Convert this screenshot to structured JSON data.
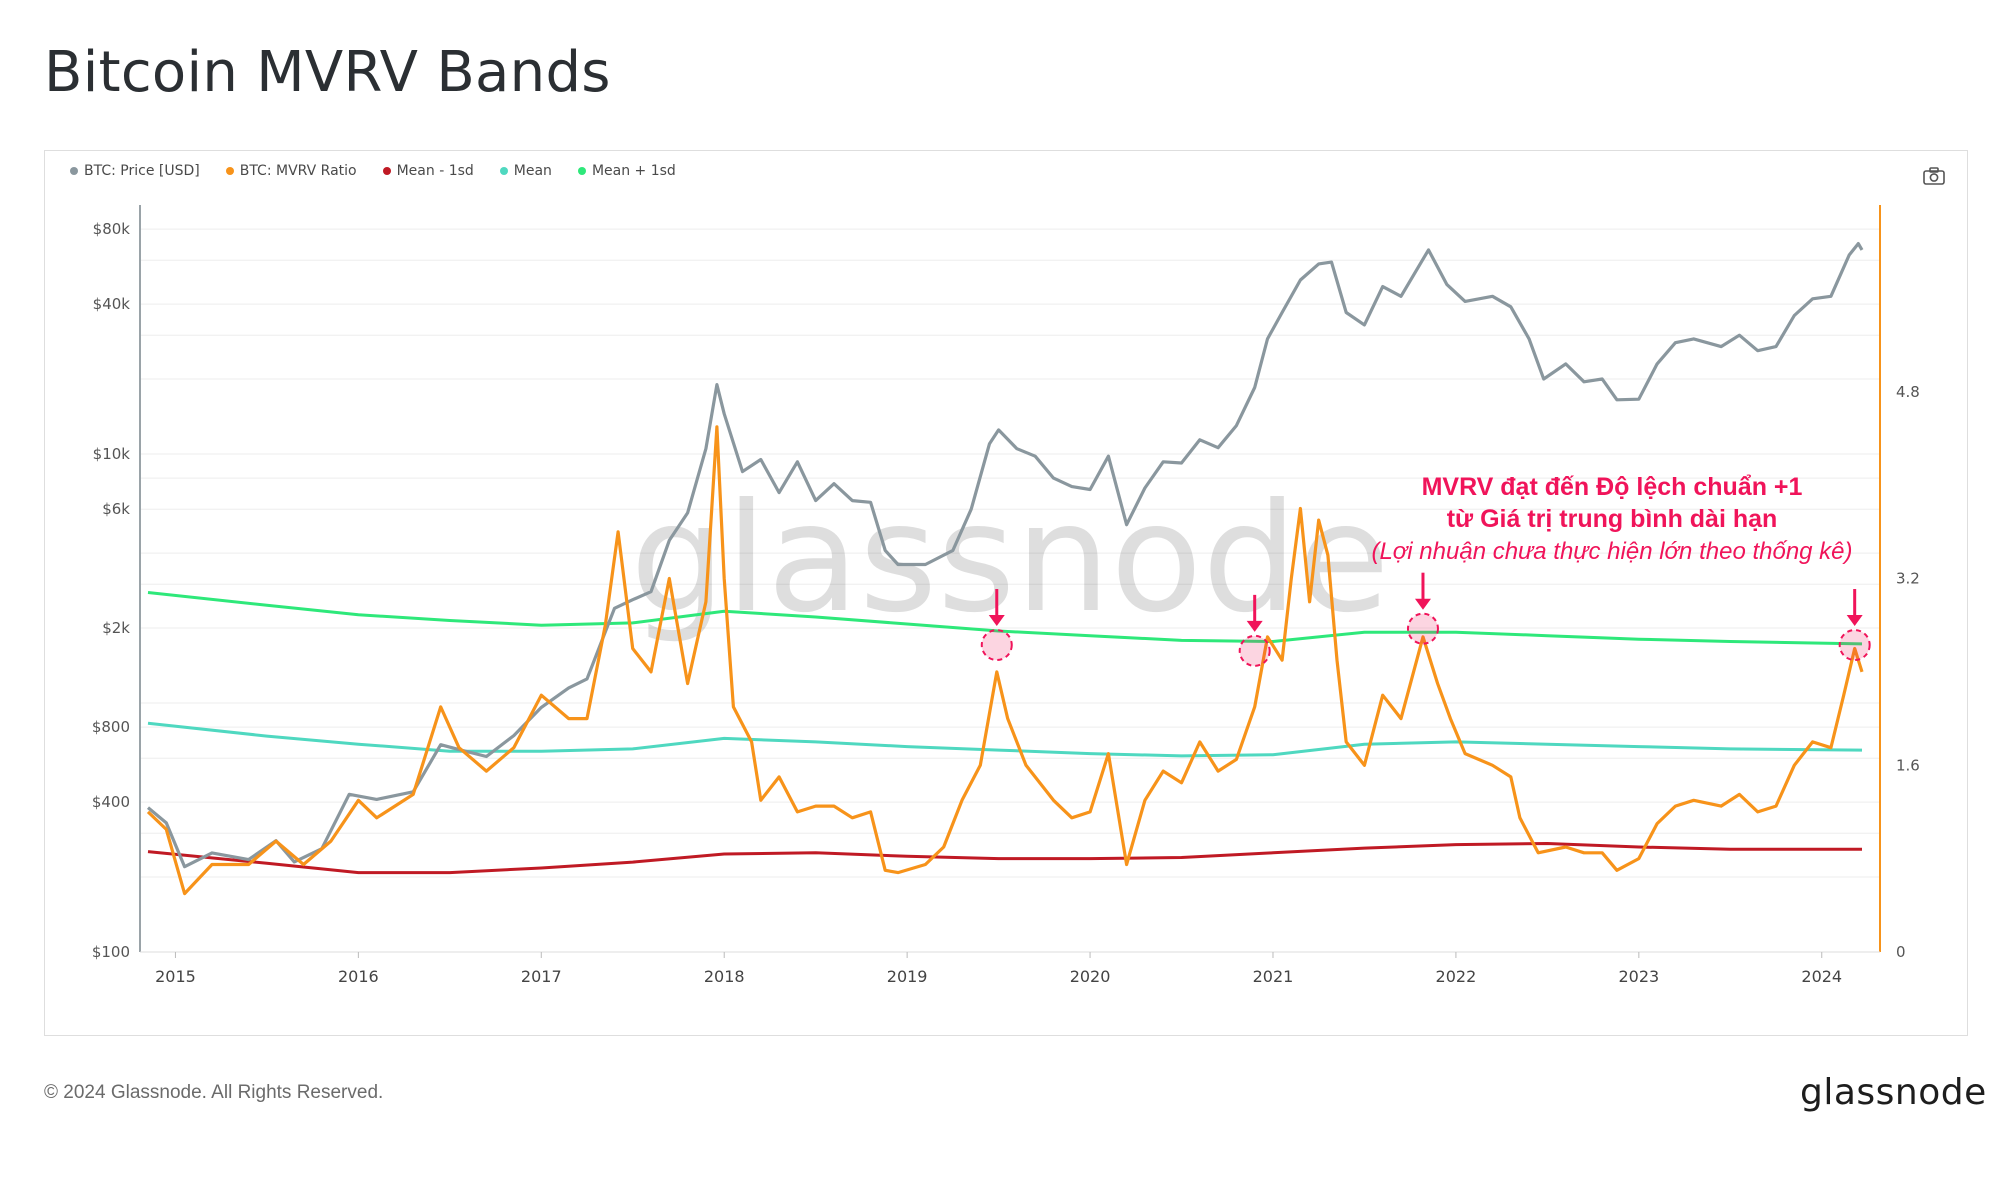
{
  "title": "Bitcoin MVRV Bands",
  "footer": "© 2024 Glassnode. All Rights Reserved.",
  "brand": "glassnode",
  "watermark": "glassnode",
  "legend": [
    {
      "label": "BTC: Price [USD]",
      "color": "#8a979e"
    },
    {
      "label": "BTC: MVRV Ratio",
      "color": "#f7931a"
    },
    {
      "label": "Mean - 1sd",
      "color": "#c01a24"
    },
    {
      "label": "Mean",
      "color": "#4fd8c0"
    },
    {
      "label": "Mean + 1sd",
      "color": "#2ee87a"
    }
  ],
  "camera_icon": "camera-icon",
  "annotation": {
    "line1": "MVRV đạt đến Độ lệch chuẩn +1",
    "line2": "từ Giá trị trung bình dài hạn",
    "line3": "(Lợi nhuận chưa thực hiện lớn theo thống kê)",
    "color": "#f0145a"
  },
  "chart_data": {
    "type": "line",
    "y_left": {
      "label": "",
      "scale": "log",
      "range": [
        100,
        100000
      ],
      "ticks": [
        "$100",
        "$400",
        "$800",
        "$2k",
        "$6k",
        "$10k",
        "$40k",
        "$80k"
      ]
    },
    "y_right": {
      "label": "",
      "range": [
        0,
        6.4
      ],
      "ticks": [
        "0",
        "1.6",
        "3.2",
        "4.8"
      ]
    },
    "x_ticks": [
      "2015",
      "2016",
      "2017",
      "2018",
      "2019",
      "2020",
      "2021",
      "2022",
      "2023",
      "2024"
    ],
    "x_range": [
      2014.85,
      2024.22
    ],
    "series": [
      {
        "name": "BTC: Price [USD]",
        "axis": "left",
        "color": "#8a979e",
        "points": [
          [
            2014.85,
            380
          ],
          [
            2014.95,
            330
          ],
          [
            2015.05,
            220
          ],
          [
            2015.2,
            250
          ],
          [
            2015.4,
            235
          ],
          [
            2015.55,
            280
          ],
          [
            2015.65,
            230
          ],
          [
            2015.8,
            260
          ],
          [
            2015.95,
            430
          ],
          [
            2016.1,
            410
          ],
          [
            2016.3,
            440
          ],
          [
            2016.45,
            680
          ],
          [
            2016.55,
            650
          ],
          [
            2016.7,
            610
          ],
          [
            2016.85,
            740
          ],
          [
            2017.0,
            960
          ],
          [
            2017.15,
            1150
          ],
          [
            2017.25,
            1250
          ],
          [
            2017.4,
            2400
          ],
          [
            2017.5,
            2600
          ],
          [
            2017.6,
            2800
          ],
          [
            2017.7,
            4500
          ],
          [
            2017.8,
            5800
          ],
          [
            2017.9,
            10500
          ],
          [
            2017.96,
            19000
          ],
          [
            2018.0,
            14500
          ],
          [
            2018.1,
            8500
          ],
          [
            2018.2,
            9500
          ],
          [
            2018.3,
            7000
          ],
          [
            2018.4,
            9300
          ],
          [
            2018.5,
            6500
          ],
          [
            2018.6,
            7600
          ],
          [
            2018.7,
            6500
          ],
          [
            2018.8,
            6400
          ],
          [
            2018.88,
            4100
          ],
          [
            2018.95,
            3600
          ],
          [
            2019.1,
            3600
          ],
          [
            2019.25,
            4100
          ],
          [
            2019.35,
            6000
          ],
          [
            2019.45,
            11000
          ],
          [
            2019.5,
            12500
          ],
          [
            2019.6,
            10500
          ],
          [
            2019.7,
            9800
          ],
          [
            2019.8,
            8000
          ],
          [
            2019.9,
            7400
          ],
          [
            2020.0,
            7200
          ],
          [
            2020.1,
            9800
          ],
          [
            2020.2,
            5200
          ],
          [
            2020.3,
            7300
          ],
          [
            2020.4,
            9300
          ],
          [
            2020.5,
            9200
          ],
          [
            2020.6,
            11400
          ],
          [
            2020.7,
            10600
          ],
          [
            2020.8,
            13000
          ],
          [
            2020.9,
            18500
          ],
          [
            2020.97,
            29000
          ],
          [
            2021.05,
            37000
          ],
          [
            2021.15,
            50000
          ],
          [
            2021.25,
            58000
          ],
          [
            2021.32,
            59000
          ],
          [
            2021.4,
            37000
          ],
          [
            2021.5,
            33000
          ],
          [
            2021.6,
            47000
          ],
          [
            2021.7,
            43000
          ],
          [
            2021.85,
            66000
          ],
          [
            2021.95,
            48000
          ],
          [
            2022.05,
            41000
          ],
          [
            2022.2,
            43000
          ],
          [
            2022.3,
            39000
          ],
          [
            2022.4,
            29000
          ],
          [
            2022.48,
            20000
          ],
          [
            2022.6,
            23000
          ],
          [
            2022.7,
            19500
          ],
          [
            2022.8,
            20000
          ],
          [
            2022.88,
            16500
          ],
          [
            2023.0,
            16600
          ],
          [
            2023.1,
            23000
          ],
          [
            2023.2,
            28000
          ],
          [
            2023.3,
            29000
          ],
          [
            2023.45,
            27000
          ],
          [
            2023.55,
            30000
          ],
          [
            2023.65,
            26000
          ],
          [
            2023.75,
            27000
          ],
          [
            2023.85,
            36000
          ],
          [
            2023.95,
            42000
          ],
          [
            2024.05,
            43000
          ],
          [
            2024.15,
            63000
          ],
          [
            2024.2,
            70000
          ],
          [
            2024.22,
            66000
          ]
        ]
      },
      {
        "name": "BTC: MVRV Ratio",
        "axis": "right",
        "color": "#f7931a",
        "points": [
          [
            2014.85,
            1.2
          ],
          [
            2014.95,
            1.05
          ],
          [
            2015.05,
            0.5
          ],
          [
            2015.2,
            0.75
          ],
          [
            2015.4,
            0.75
          ],
          [
            2015.55,
            0.95
          ],
          [
            2015.7,
            0.75
          ],
          [
            2015.85,
            0.95
          ],
          [
            2016.0,
            1.3
          ],
          [
            2016.1,
            1.15
          ],
          [
            2016.3,
            1.35
          ],
          [
            2016.45,
            2.1
          ],
          [
            2016.55,
            1.75
          ],
          [
            2016.7,
            1.55
          ],
          [
            2016.85,
            1.75
          ],
          [
            2017.0,
            2.2
          ],
          [
            2017.15,
            2.0
          ],
          [
            2017.25,
            2.0
          ],
          [
            2017.35,
            2.8
          ],
          [
            2017.42,
            3.6
          ],
          [
            2017.5,
            2.6
          ],
          [
            2017.6,
            2.4
          ],
          [
            2017.7,
            3.2
          ],
          [
            2017.8,
            2.3
          ],
          [
            2017.9,
            3.0
          ],
          [
            2017.96,
            4.5
          ],
          [
            2018.0,
            3.2
          ],
          [
            2018.05,
            2.1
          ],
          [
            2018.15,
            1.8
          ],
          [
            2018.2,
            1.3
          ],
          [
            2018.3,
            1.5
          ],
          [
            2018.4,
            1.2
          ],
          [
            2018.5,
            1.25
          ],
          [
            2018.6,
            1.25
          ],
          [
            2018.7,
            1.15
          ],
          [
            2018.8,
            1.2
          ],
          [
            2018.88,
            0.7
          ],
          [
            2018.95,
            0.68
          ],
          [
            2019.1,
            0.75
          ],
          [
            2019.2,
            0.9
          ],
          [
            2019.3,
            1.3
          ],
          [
            2019.4,
            1.6
          ],
          [
            2019.49,
            2.4
          ],
          [
            2019.55,
            2.0
          ],
          [
            2019.65,
            1.6
          ],
          [
            2019.8,
            1.3
          ],
          [
            2019.9,
            1.15
          ],
          [
            2020.0,
            1.2
          ],
          [
            2020.1,
            1.7
          ],
          [
            2020.2,
            0.75
          ],
          [
            2020.3,
            1.3
          ],
          [
            2020.4,
            1.55
          ],
          [
            2020.5,
            1.45
          ],
          [
            2020.6,
            1.8
          ],
          [
            2020.7,
            1.55
          ],
          [
            2020.8,
            1.65
          ],
          [
            2020.9,
            2.1
          ],
          [
            2020.97,
            2.7
          ],
          [
            2021.05,
            2.5
          ],
          [
            2021.1,
            3.2
          ],
          [
            2021.15,
            3.8
          ],
          [
            2021.2,
            3.0
          ],
          [
            2021.25,
            3.7
          ],
          [
            2021.3,
            3.4
          ],
          [
            2021.35,
            2.5
          ],
          [
            2021.4,
            1.8
          ],
          [
            2021.5,
            1.6
          ],
          [
            2021.6,
            2.2
          ],
          [
            2021.7,
            2.0
          ],
          [
            2021.82,
            2.7
          ],
          [
            2021.9,
            2.3
          ],
          [
            2021.97,
            2.0
          ],
          [
            2022.05,
            1.7
          ],
          [
            2022.2,
            1.6
          ],
          [
            2022.3,
            1.5
          ],
          [
            2022.35,
            1.15
          ],
          [
            2022.45,
            0.85
          ],
          [
            2022.6,
            0.9
          ],
          [
            2022.7,
            0.85
          ],
          [
            2022.8,
            0.85
          ],
          [
            2022.88,
            0.7
          ],
          [
            2023.0,
            0.8
          ],
          [
            2023.1,
            1.1
          ],
          [
            2023.2,
            1.25
          ],
          [
            2023.3,
            1.3
          ],
          [
            2023.45,
            1.25
          ],
          [
            2023.55,
            1.35
          ],
          [
            2023.65,
            1.2
          ],
          [
            2023.75,
            1.25
          ],
          [
            2023.85,
            1.6
          ],
          [
            2023.95,
            1.8
          ],
          [
            2024.05,
            1.75
          ],
          [
            2024.12,
            2.2
          ],
          [
            2024.18,
            2.6
          ],
          [
            2024.22,
            2.4
          ]
        ]
      },
      {
        "name": "Mean - 1sd",
        "axis": "right",
        "color": "#c01a24",
        "points": [
          [
            2014.85,
            0.86
          ],
          [
            2015.5,
            0.76
          ],
          [
            2016.0,
            0.68
          ],
          [
            2016.5,
            0.68
          ],
          [
            2017.0,
            0.72
          ],
          [
            2017.5,
            0.77
          ],
          [
            2018.0,
            0.84
          ],
          [
            2018.5,
            0.85
          ],
          [
            2019.0,
            0.82
          ],
          [
            2019.5,
            0.8
          ],
          [
            2020.0,
            0.8
          ],
          [
            2020.5,
            0.81
          ],
          [
            2021.0,
            0.85
          ],
          [
            2021.5,
            0.89
          ],
          [
            2022.0,
            0.92
          ],
          [
            2022.5,
            0.93
          ],
          [
            2023.0,
            0.9
          ],
          [
            2023.5,
            0.88
          ],
          [
            2024.22,
            0.88
          ]
        ]
      },
      {
        "name": "Mean",
        "axis": "right",
        "color": "#4fd8c0",
        "points": [
          [
            2014.85,
            1.96
          ],
          [
            2015.5,
            1.85
          ],
          [
            2016.0,
            1.78
          ],
          [
            2016.5,
            1.72
          ],
          [
            2017.0,
            1.72
          ],
          [
            2017.5,
            1.74
          ],
          [
            2018.0,
            1.83
          ],
          [
            2018.5,
            1.8
          ],
          [
            2019.0,
            1.76
          ],
          [
            2019.5,
            1.73
          ],
          [
            2020.0,
            1.7
          ],
          [
            2020.5,
            1.68
          ],
          [
            2021.0,
            1.69
          ],
          [
            2021.5,
            1.78
          ],
          [
            2022.0,
            1.8
          ],
          [
            2022.5,
            1.78
          ],
          [
            2023.0,
            1.76
          ],
          [
            2023.5,
            1.74
          ],
          [
            2024.22,
            1.73
          ]
        ]
      },
      {
        "name": "Mean + 1sd",
        "axis": "right",
        "color": "#2ee87a",
        "points": [
          [
            2014.85,
            3.08
          ],
          [
            2015.5,
            2.97
          ],
          [
            2016.0,
            2.89
          ],
          [
            2016.5,
            2.84
          ],
          [
            2017.0,
            2.8
          ],
          [
            2017.5,
            2.82
          ],
          [
            2018.0,
            2.92
          ],
          [
            2018.5,
            2.87
          ],
          [
            2019.0,
            2.81
          ],
          [
            2019.5,
            2.75
          ],
          [
            2020.0,
            2.71
          ],
          [
            2020.5,
            2.67
          ],
          [
            2021.0,
            2.66
          ],
          [
            2021.5,
            2.74
          ],
          [
            2022.0,
            2.74
          ],
          [
            2022.5,
            2.71
          ],
          [
            2023.0,
            2.68
          ],
          [
            2023.5,
            2.66
          ],
          [
            2024.22,
            2.64
          ]
        ]
      }
    ],
    "highlights": [
      {
        "x": 2019.49,
        "y": 2.63
      },
      {
        "x": 2020.9,
        "y": 2.58
      },
      {
        "x": 2021.82,
        "y": 2.77
      },
      {
        "x": 2024.18,
        "y": 2.63
      }
    ]
  }
}
